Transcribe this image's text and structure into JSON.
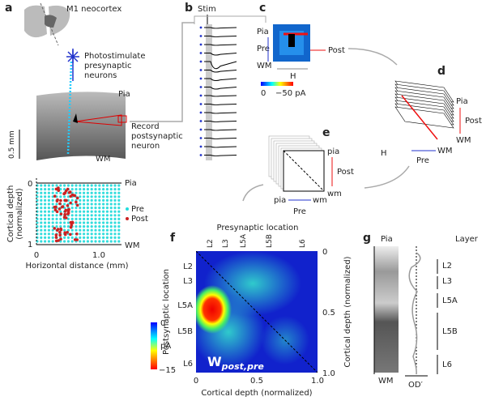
{
  "panels": {
    "a": {
      "label": "a",
      "brain_label": "M1 neocortex",
      "photostim": [
        "Photostimulate",
        "presynaptic",
        "neurons"
      ],
      "pia": "Pia",
      "record": [
        "Record",
        "postsynaptic",
        "neuron"
      ],
      "wm": "WM",
      "scale": "0.5 mm",
      "map": {
        "y_label": "Cortical depth",
        "y_label2": "(normalized)",
        "y_ticks": [
          "0",
          "1"
        ],
        "pia": "Pia",
        "wm": "WM",
        "legend": [
          "Pre",
          "Post"
        ],
        "x_label": "Horizontal distance (mm)",
        "x_ticks": [
          "0",
          "1.0"
        ]
      }
    },
    "b": {
      "label": "b",
      "stim": "Stim"
    },
    "c": {
      "label": "c",
      "pia": "Pia",
      "pre": "Pre",
      "wm": "WM",
      "post": "Post",
      "h": "H",
      "cbar": [
        "0",
        "−50 pA"
      ]
    },
    "d": {
      "label": "d",
      "pia": "Pia",
      "post": "Post",
      "wm": "WM",
      "h": "H",
      "pre": "Pre",
      "wm2": "WM"
    },
    "e": {
      "label": "e",
      "pia": "pia",
      "post": "Post",
      "wm": "wm",
      "pia2": "pia",
      "wm2": "wm",
      "pre": "Pre"
    },
    "f": {
      "label": "f",
      "x_top_label": "Presynaptic location",
      "top_layers": [
        "L2",
        "L3",
        "L5A",
        "L5B",
        "L6"
      ],
      "y_left_label": "Postsynaptic location",
      "left_layers": [
        "L2",
        "L3",
        "L5A",
        "L5B",
        "L6"
      ],
      "right_ticks": [
        "0",
        "0.5",
        "1.0"
      ],
      "right_label": "Cortical depth (normalized)",
      "bottom_ticks": [
        "0",
        "0.5",
        "1.0"
      ],
      "bottom_label": "Cortical depth (normalized)",
      "cbar": [
        "0",
        "pA",
        "−15"
      ],
      "matrix_symbol": "W",
      "matrix_sub": "post,pre"
    },
    "g": {
      "label": "g",
      "pia": "Pia",
      "wm": "WM",
      "od": "OD′",
      "layer_title": "Layer",
      "layers": [
        "L2",
        "L3",
        "L5A",
        "L5B",
        "L6"
      ]
    }
  }
}
